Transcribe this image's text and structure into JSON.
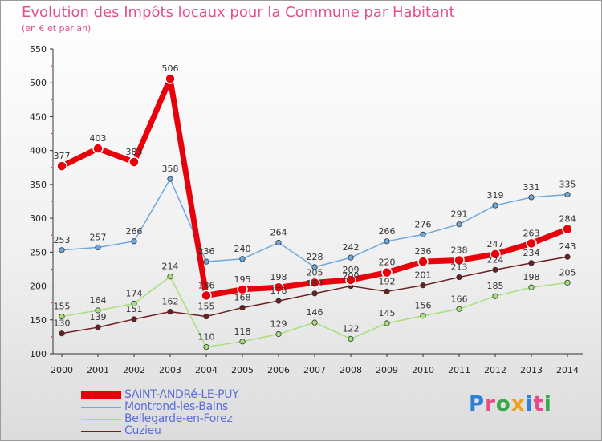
{
  "title": "Evolution des Impôts locaux pour la Commune par Habitant",
  "subtitle": "(en € et par an)",
  "logo": {
    "text": "Proxiti",
    "colors": [
      "#2f7fd6",
      "#e94b8a",
      "#3aa64a",
      "#f0a11a",
      "#2f7fd6",
      "#e94b8a",
      "#3aa64a"
    ]
  },
  "chart_data": {
    "type": "line",
    "x": [
      "2000",
      "2001",
      "2002",
      "2003",
      "2004",
      "2005",
      "2006",
      "2007",
      "2008",
      "2009",
      "2010",
      "2011",
      "2012",
      "2013",
      "2014"
    ],
    "ylim": [
      100,
      550
    ],
    "yticks": [
      "100",
      "150",
      "200",
      "250",
      "300",
      "350",
      "400",
      "450",
      "500",
      "550"
    ],
    "grid": false,
    "legend_position": "bottom-left",
    "series": [
      {
        "name": "SAINT-ANDRé-LE-PUY",
        "color": "#e8000b",
        "values": [
          377,
          403,
          383,
          506,
          186,
          195,
          198,
          205,
          209,
          220,
          236,
          238,
          247,
          263,
          284
        ]
      },
      {
        "name": "Montrond-les-Bains",
        "color": "#6fa8dc",
        "values": [
          253,
          257,
          266,
          358,
          236,
          240,
          264,
          228,
          242,
          266,
          276,
          291,
          319,
          331,
          335
        ]
      },
      {
        "name": "Bellegarde-en-Forez",
        "color": "#a6e07a",
        "values": [
          155,
          164,
          174,
          214,
          110,
          118,
          129,
          146,
          122,
          145,
          156,
          166,
          185,
          198,
          205
        ]
      },
      {
        "name": "Cuzieu",
        "color": "#6b1f1f",
        "values": [
          130,
          139,
          151,
          162,
          155,
          168,
          178,
          189,
          200,
          192,
          201,
          213,
          224,
          234,
          243
        ]
      }
    ]
  }
}
